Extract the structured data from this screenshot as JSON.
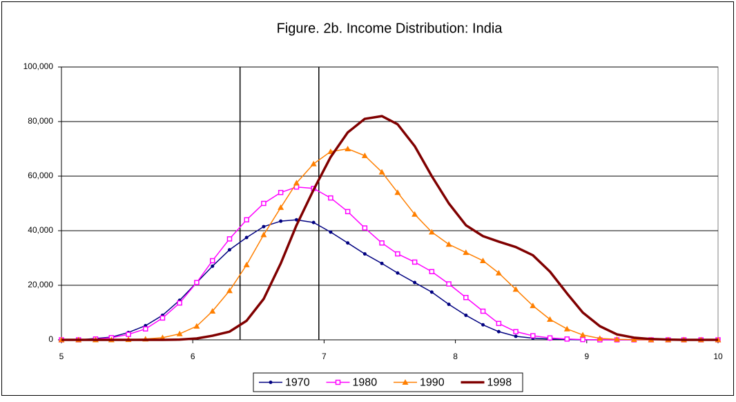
{
  "chart_data": {
    "type": "line",
    "title": "Figure. 2b. Income Distribution: India",
    "x": [
      5,
      5.13,
      5.26,
      5.38,
      5.51,
      5.64,
      5.77,
      5.9,
      6.03,
      6.15,
      6.28,
      6.41,
      6.54,
      6.67,
      6.79,
      6.92,
      7.05,
      7.18,
      7.31,
      7.44,
      7.56,
      7.69,
      7.82,
      7.95,
      8.08,
      8.21,
      8.33,
      8.46,
      8.59,
      8.72,
      8.85,
      8.97,
      9.1,
      9.23,
      9.36,
      9.49,
      9.62,
      9.74,
      9.87,
      10
    ],
    "series": [
      {
        "name": "1970",
        "color": "#000080",
        "marker": "circle",
        "values": [
          0,
          0,
          500,
          1000,
          2700,
          5200,
          9000,
          14500,
          21000,
          27000,
          33000,
          37500,
          41500,
          43500,
          44000,
          43000,
          39500,
          35500,
          31500,
          28000,
          24500,
          21000,
          17500,
          13000,
          9000,
          5500,
          3000,
          1300,
          600,
          300,
          100,
          0,
          0,
          0,
          0,
          0,
          0,
          0,
          0,
          0
        ]
      },
      {
        "name": "1980",
        "color": "#ff00ff",
        "marker": "square",
        "values": [
          0,
          0,
          300,
          800,
          2000,
          4000,
          8000,
          13500,
          21000,
          29000,
          37000,
          44000,
          50000,
          54000,
          56000,
          55500,
          52000,
          47000,
          41000,
          35500,
          31500,
          28500,
          25000,
          20500,
          15500,
          10500,
          6000,
          3000,
          1500,
          700,
          300,
          100,
          0,
          0,
          0,
          0,
          0,
          0,
          0,
          0
        ]
      },
      {
        "name": "1990",
        "color": "#ff7f00",
        "marker": "triangle",
        "values": [
          0,
          0,
          0,
          0,
          100,
          300,
          800,
          2200,
          5000,
          10500,
          18000,
          27500,
          38500,
          48500,
          57500,
          64500,
          69000,
          70000,
          67500,
          61500,
          54000,
          46000,
          39500,
          35000,
          32000,
          29000,
          24500,
          18500,
          12500,
          7500,
          4000,
          1800,
          500,
          200,
          100,
          0,
          0,
          0,
          0,
          0
        ]
      },
      {
        "name": "1998",
        "color": "#800000",
        "marker": "none",
        "values": [
          0,
          0,
          0,
          0,
          0,
          0,
          0,
          100,
          500,
          1500,
          3000,
          7000,
          15000,
          28000,
          42000,
          55000,
          67000,
          76000,
          81000,
          82000,
          79000,
          71000,
          60000,
          50000,
          42000,
          38000,
          36000,
          34000,
          31000,
          25000,
          17000,
          10000,
          5000,
          2000,
          800,
          300,
          100,
          0,
          0,
          0
        ]
      }
    ],
    "xlim": [
      5,
      10
    ],
    "xticks": [
      5,
      6,
      7,
      8,
      9,
      10
    ],
    "ylim": [
      0,
      100000
    ],
    "yticks": [
      0,
      {
        "value": 20000,
        "label": "20,000"
      },
      {
        "value": 40000,
        "label": "40,000"
      },
      {
        "value": 60000,
        "label": "60,000"
      },
      {
        "value": 80000,
        "label": "80,000"
      },
      {
        "value": 100000,
        "label": "100,000"
      }
    ],
    "vlines": [
      6.36,
      6.96
    ],
    "grid": true,
    "legend": "bottom"
  }
}
